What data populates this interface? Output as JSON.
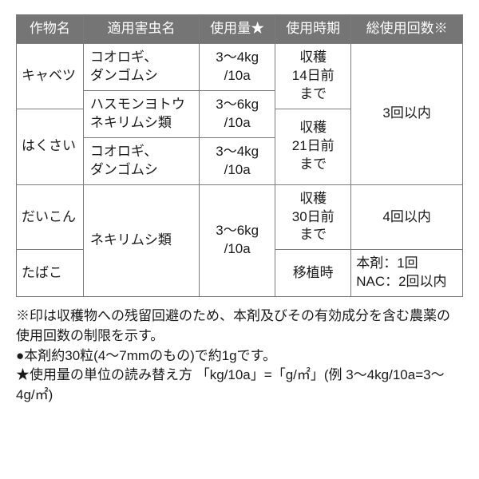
{
  "headers": {
    "crop": "作物名",
    "pest": "適用害虫名",
    "amount": "使用量★",
    "timing": "使用時期",
    "count": "総使用回数※"
  },
  "crops": {
    "cabbage": "キャベツ",
    "hakusai": "はくさい",
    "daikon": "だいこん",
    "tabako": "たばこ"
  },
  "pests": {
    "cricket_pillbug": "コオロギ、\nダンゴムシ",
    "hasumonyotou": "ハスモンヨトウ\nネキリムシ類",
    "nekirimushi": "ネキリムシ類"
  },
  "amounts": {
    "a3_4": "3～4kg\n/10a",
    "a3_6": "3～6kg\n/10a"
  },
  "timings": {
    "d14": "収穫\n14日前\nまで",
    "d21": "収穫\n21日前\nまで",
    "d30": "収穫\n30日前\nまで",
    "transplant": "移植時"
  },
  "counts": {
    "c3": "3回以内",
    "c4": "4回以内",
    "tabako": "本剤：1回\nNAC：2回以内"
  },
  "notes": {
    "n1": "※印は収穫物への残留回避のため、本剤及びその有効成分を含む農薬の使用回数の制限を示す。",
    "n2": "●本剤約30粒(4～7mmのもの)で約1gです。",
    "n3": "★使用量の単位の読み替え方 「kg/10a」=「g/㎡」(例 3～4kg/10a=3～4g/㎡)"
  }
}
